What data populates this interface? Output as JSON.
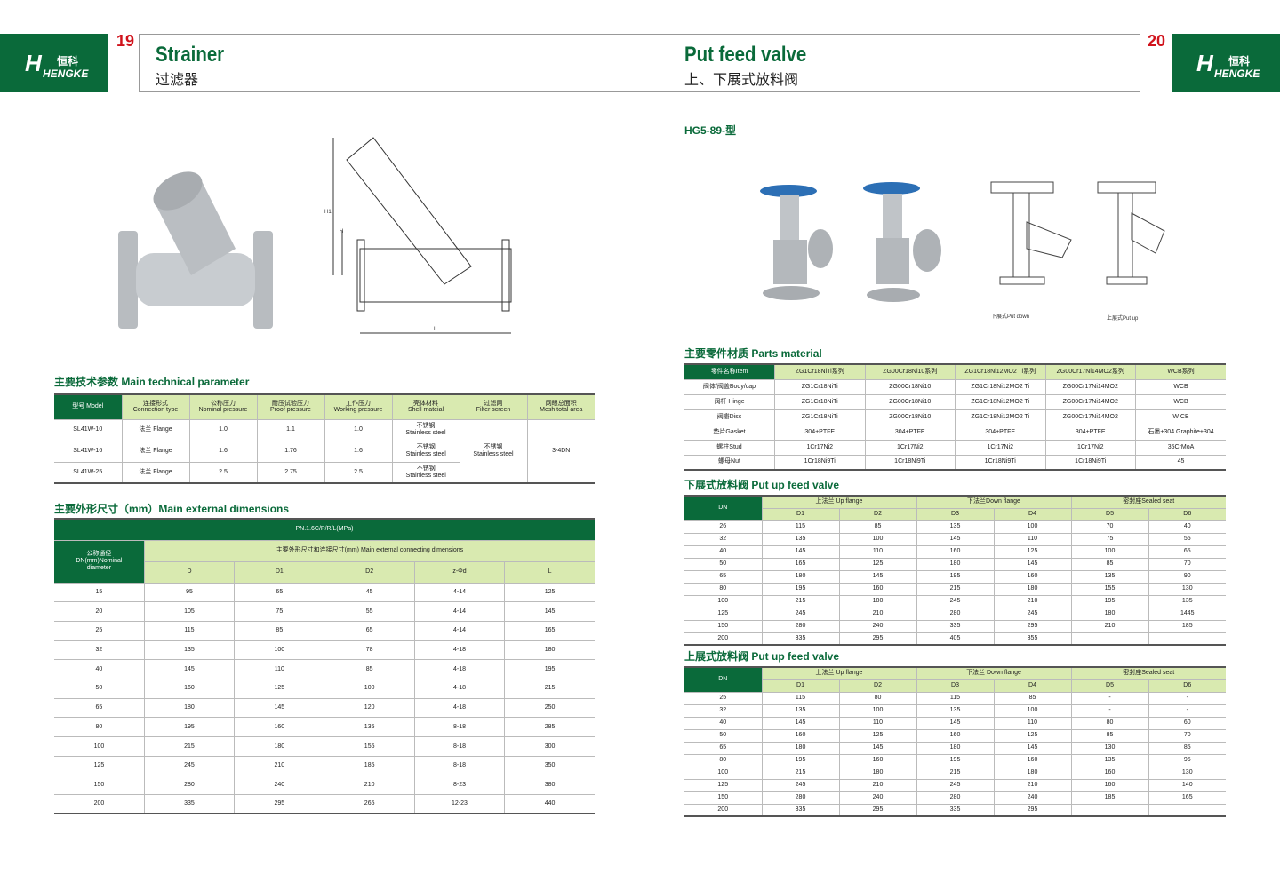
{
  "brand": {
    "logo_text": "HENGKE",
    "logo_cn": "恒科",
    "color": "#0a6a3a"
  },
  "left": {
    "page_number": "19",
    "title": "Strainer",
    "subtitle": "过滤器",
    "tech_title": "主要技术参数 Main technical parameter",
    "tech_headers": [
      "型号 Model",
      "连接形式\nConnection type",
      "公称压力\nNominal pressure",
      "耐压试验压力\nProof pressure",
      "工作压力\nWorking pressure",
      "壳体材料\nShell mateial",
      "过滤网\nFilter screen",
      "网眼总面积\nMesh total area"
    ],
    "tech_rows": [
      [
        "SL41W-10",
        "法兰 Flange",
        "1.0",
        "1.1",
        "1.0",
        "不锈钢\nStainless steel"
      ],
      [
        "SL41W-16",
        "法兰 Flange",
        "1.6",
        "1.76",
        "1.6",
        "不锈钢\nStainless steel"
      ],
      [
        "SL41W-25",
        "法兰 Flange",
        "2.5",
        "2.75",
        "2.5",
        "不锈钢\nStainless steel"
      ]
    ],
    "tech_filter": "不锈钢\nStainless steel",
    "tech_mesh": "3-4DN",
    "dim_title": "主要外形尺寸（mm）Main external dimensions",
    "dim_pressure": "PN.1.6C/P/R/L(MPa)",
    "dim_dn_header": "公称通径\nDN(mm)Nominal\ndiameter",
    "dim_group": "主要外形尺寸和连接尺寸(mm) Main external connecting dimensions",
    "dim_cols": [
      "D",
      "D1",
      "D2",
      "z-Φd",
      "L"
    ],
    "dim_rows": [
      [
        "15",
        "95",
        "65",
        "45",
        "4-14",
        "125"
      ],
      [
        "20",
        "105",
        "75",
        "55",
        "4-14",
        "145"
      ],
      [
        "25",
        "115",
        "85",
        "65",
        "4-14",
        "165"
      ],
      [
        "32",
        "135",
        "100",
        "78",
        "4-18",
        "180"
      ],
      [
        "40",
        "145",
        "110",
        "85",
        "4-18",
        "195"
      ],
      [
        "50",
        "160",
        "125",
        "100",
        "4-18",
        "215"
      ],
      [
        "65",
        "180",
        "145",
        "120",
        "4-18",
        "250"
      ],
      [
        "80",
        "195",
        "160",
        "135",
        "8-18",
        "285"
      ],
      [
        "100",
        "215",
        "180",
        "155",
        "8-18",
        "300"
      ],
      [
        "125",
        "245",
        "210",
        "185",
        "8-18",
        "350"
      ],
      [
        "150",
        "280",
        "240",
        "210",
        "8-23",
        "380"
      ],
      [
        "200",
        "335",
        "295",
        "265",
        "12-23",
        "440"
      ]
    ],
    "drawing_labels": [
      "H1",
      "H",
      "L"
    ]
  },
  "right": {
    "page_number": "20",
    "title": "Put feed valve",
    "subtitle": "上、下展式放料阀",
    "model": "HG5-89-型",
    "drawing_captions": [
      "下展式Put down",
      "上展式Put up"
    ],
    "parts_title": "主要零件材质 Parts material",
    "parts_headers": [
      "零件名称Item",
      "ZG1Cr18NiTi系列",
      "ZG00Cr18Ni10系列",
      "ZG1Cr18Ni12MO2 Ti系列",
      "ZG00Cr17Ni14MO2系列",
      "WCB系列"
    ],
    "parts_rows": [
      [
        "阀体/阀盖Body/cap",
        "ZG1Cr18NiTi",
        "ZG00Cr18Ni10",
        "ZG1Cr18Ni12MO2 Ti",
        "ZG00Cr17Ni14MO2",
        "WCB"
      ],
      [
        "阀杆 Hinge",
        "ZG1Cr18NiTi",
        "ZG00Cr18Ni10",
        "ZG1Cr18Ni12MO2 Ti",
        "ZG00Cr17Ni14MO2",
        "WCB"
      ],
      [
        "阀瓣Disc",
        "ZG1Cr18NiTi",
        "ZG00Cr18Ni10",
        "ZG1Cr18Ni12MO2 Ti",
        "ZG00Cr17Ni14MO2",
        "W CB"
      ],
      [
        "垫片Gasket",
        "304+PTFE",
        "304+PTFE",
        "304+PTFE",
        "304+PTFE",
        "石墨+304 Graphite+304"
      ],
      [
        "螺柱Stud",
        "1Cr17Ni2",
        "1Cr17Ni2",
        "1Cr17Ni2",
        "1Cr17Ni2",
        "35CrMoA"
      ],
      [
        "螺母Nut",
        "1Cr18Ni9Ti",
        "1Cr18Ni9Ti",
        "1Cr18Ni9Ti",
        "1Cr18Ni9Ti",
        "45"
      ]
    ],
    "down_title": "下展式放料阀 Put up feed valve",
    "down_groups": [
      "上法兰 Up flange",
      "下法兰Down flange",
      "密封座Sealed seat"
    ],
    "cols": [
      "D1",
      "D2",
      "D3",
      "D4",
      "D5",
      "D6"
    ],
    "dn_label": "DN",
    "down_rows": [
      [
        "26",
        "115",
        "85",
        "135",
        "100",
        "70",
        "40"
      ],
      [
        "32",
        "135",
        "100",
        "145",
        "110",
        "75",
        "55"
      ],
      [
        "40",
        "145",
        "110",
        "160",
        "125",
        "100",
        "65"
      ],
      [
        "50",
        "165",
        "125",
        "180",
        "145",
        "85",
        "70"
      ],
      [
        "65",
        "180",
        "145",
        "195",
        "160",
        "135",
        "90"
      ],
      [
        "80",
        "195",
        "160",
        "215",
        "180",
        "155",
        "130"
      ],
      [
        "100",
        "215",
        "180",
        "245",
        "210",
        "195",
        "135"
      ],
      [
        "125",
        "245",
        "210",
        "280",
        "245",
        "180",
        "1445"
      ],
      [
        "150",
        "280",
        "240",
        "335",
        "295",
        "210",
        "185"
      ],
      [
        "200",
        "335",
        "295",
        "405",
        "355",
        "",
        ""
      ]
    ],
    "up_title": "上展式放料阀 Put up feed valve",
    "up_groups": [
      "上法兰 Up flange",
      "下法兰 Down flange",
      "密封座Sealed seat"
    ],
    "up_rows": [
      [
        "25",
        "115",
        "80",
        "115",
        "85",
        "-",
        "-"
      ],
      [
        "32",
        "135",
        "100",
        "135",
        "100",
        "-",
        "-"
      ],
      [
        "40",
        "145",
        "110",
        "145",
        "110",
        "80",
        "60"
      ],
      [
        "50",
        "160",
        "125",
        "160",
        "125",
        "85",
        "70"
      ],
      [
        "65",
        "180",
        "145",
        "180",
        "145",
        "130",
        "85"
      ],
      [
        "80",
        "195",
        "160",
        "195",
        "160",
        "135",
        "95"
      ],
      [
        "100",
        "215",
        "180",
        "215",
        "180",
        "160",
        "130"
      ],
      [
        "125",
        "245",
        "210",
        "245",
        "210",
        "160",
        "140"
      ],
      [
        "150",
        "280",
        "240",
        "280",
        "240",
        "185",
        "165"
      ],
      [
        "200",
        "335",
        "295",
        "335",
        "295",
        "",
        ""
      ]
    ]
  }
}
